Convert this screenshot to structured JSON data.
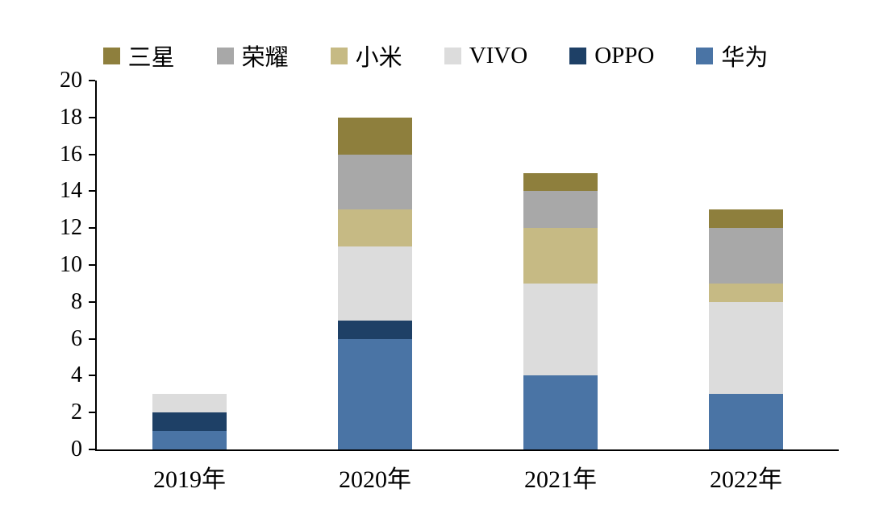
{
  "chart_data": {
    "type": "bar",
    "stacked": true,
    "title": "",
    "xlabel": "",
    "ylabel": "",
    "categories": [
      "2019年",
      "2020年",
      "2021年",
      "2022年"
    ],
    "series": [
      {
        "name": "华为",
        "color": "#4a74a5",
        "values": [
          1,
          6,
          4,
          3
        ]
      },
      {
        "name": "OPPO",
        "color": "#1e4066",
        "values": [
          1,
          1,
          0,
          0
        ]
      },
      {
        "name": "VIVO",
        "color": "#dcdcdc",
        "values": [
          1,
          4,
          5,
          5
        ]
      },
      {
        "name": "小米",
        "color": "#c6ba84",
        "values": [
          0,
          2,
          3,
          1
        ]
      },
      {
        "name": "荣耀",
        "color": "#a8a8a8",
        "values": [
          0,
          3,
          2,
          3
        ]
      },
      {
        "name": "三星",
        "color": "#8e7f3d",
        "values": [
          0,
          2,
          1,
          1
        ]
      }
    ],
    "legend_order": [
      "三星",
      "荣耀",
      "小米",
      "VIVO",
      "OPPO",
      "华为"
    ],
    "ylim": [
      0,
      20
    ],
    "ytick_step": 2,
    "grid": false,
    "legend_position": "top",
    "axis_color": "#000000",
    "background_color": "#ffffff"
  }
}
